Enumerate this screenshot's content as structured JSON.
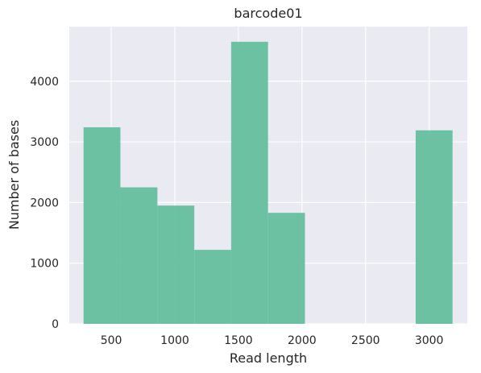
{
  "chart_data": {
    "type": "bar",
    "title": "barcode01",
    "xlabel": "Read length",
    "ylabel": "Number of bases",
    "xlim": [
      170,
      3300
    ],
    "ylim": [
      0,
      4900
    ],
    "xticks": [
      500,
      1000,
      1500,
      2000,
      2500,
      3000
    ],
    "yticks": [
      0,
      1000,
      2000,
      3000,
      4000
    ],
    "grid": true,
    "bar_color": "#66bf9e",
    "bins": [
      {
        "x0": 282,
        "x1": 572,
        "value": 3240
      },
      {
        "x0": 572,
        "x1": 863,
        "value": 2250
      },
      {
        "x0": 863,
        "x1": 1153,
        "value": 1950
      },
      {
        "x0": 1153,
        "x1": 1443,
        "value": 1220
      },
      {
        "x0": 1443,
        "x1": 1733,
        "value": 4650
      },
      {
        "x0": 1733,
        "x1": 2023,
        "value": 1830
      },
      {
        "x0": 2023,
        "x1": 2313,
        "value": 0
      },
      {
        "x0": 2313,
        "x1": 2604,
        "value": 0
      },
      {
        "x0": 2604,
        "x1": 2894,
        "value": 0
      },
      {
        "x0": 2894,
        "x1": 3184,
        "value": 3190
      }
    ]
  }
}
